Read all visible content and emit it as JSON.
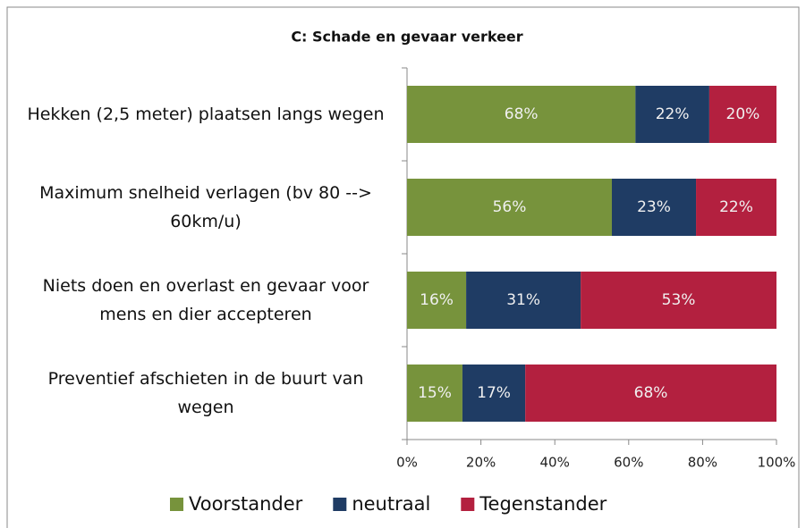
{
  "chart_data": {
    "type": "bar",
    "orientation": "horizontal",
    "stacked": "percent",
    "title": "C: Schade en gevaar verkeer",
    "categories": [
      "Hekken (2,5 meter) plaatsen langs wegen",
      "Maximum snelheid verlagen (bv 80 --> 60km/u)",
      "Niets doen en overlast en gevaar voor mens en dier accepteren",
      "Preventief afschieten in de buurt van wegen"
    ],
    "series": [
      {
        "name": "Voorstander",
        "color": "#77933c",
        "values": [
          68,
          56,
          16,
          15
        ],
        "value_labels": [
          "68%",
          "56%",
          "16%",
          "15%"
        ]
      },
      {
        "name": "neutraal",
        "color": "#1f3c64",
        "values": [
          22,
          23,
          31,
          17
        ],
        "value_labels": [
          "22%",
          "23%",
          "31%",
          "17%"
        ]
      },
      {
        "name": "Tegenstander",
        "color": "#b3203f",
        "values": [
          20,
          22,
          53,
          68
        ],
        "value_labels": [
          "20%",
          "22%",
          "53%",
          "68%"
        ]
      }
    ],
    "xlim": [
      0,
      100
    ],
    "xticks": [
      {
        "value": 0,
        "label": "0%"
      },
      {
        "value": 20,
        "label": "20%"
      },
      {
        "value": 40,
        "label": "40%"
      },
      {
        "value": 60,
        "label": "60%"
      },
      {
        "value": 80,
        "label": "80%"
      },
      {
        "value": 100,
        "label": "100%"
      }
    ],
    "legend": "bottom"
  }
}
